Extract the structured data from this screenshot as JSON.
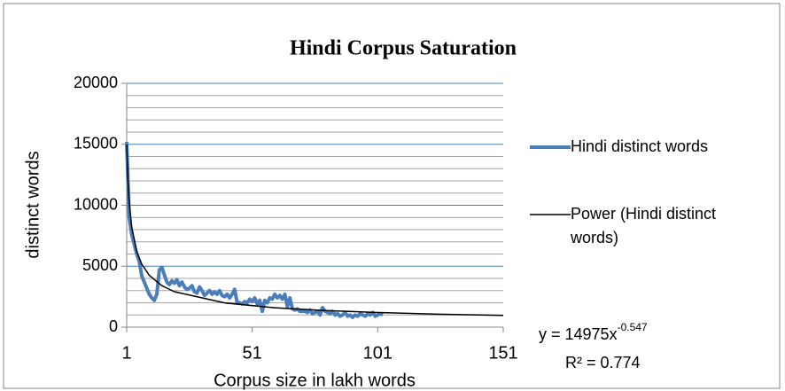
{
  "chart_data": {
    "type": "line",
    "title": "Hindi Corpus Saturation",
    "x_label": "Corpus size in lakh words",
    "y_label": "distinct words",
    "xlim": [
      1,
      151
    ],
    "xticks": [
      1,
      51,
      101,
      151
    ],
    "ylim": [
      0,
      20000
    ],
    "yticks": [
      0,
      5000,
      10000,
      15000,
      20000
    ],
    "minor_yticks": [
      1000,
      2000,
      3000,
      4000,
      6000,
      7000,
      8000,
      9000,
      11000,
      12000,
      13000,
      14000,
      16000,
      17000,
      18000,
      19000
    ],
    "grid": true,
    "legend": "right",
    "series": [
      {
        "name": "Hindi distinct words",
        "color": "#4a7ebb",
        "x": [
          1,
          2,
          3,
          4,
          5,
          6,
          7,
          8,
          9,
          10,
          11,
          12,
          13,
          14,
          15,
          16,
          17,
          18,
          19,
          20,
          21,
          22,
          23,
          24,
          25,
          26,
          27,
          28,
          29,
          30,
          31,
          32,
          33,
          34,
          35,
          36,
          37,
          38,
          39,
          40,
          41,
          42,
          43,
          44,
          45,
          46,
          47,
          48,
          49,
          50,
          51,
          52,
          53,
          54,
          55,
          56,
          57,
          58,
          59,
          60,
          61,
          62,
          63,
          64,
          65,
          66,
          67,
          68,
          69,
          70,
          71,
          72,
          73,
          74,
          75,
          76,
          77,
          78,
          79,
          80,
          81,
          82,
          83,
          84,
          85,
          86,
          87,
          88,
          89,
          90,
          91,
          92,
          93,
          94,
          95,
          96,
          97,
          98,
          99,
          100,
          101,
          102,
          103
        ],
        "values": [
          15200,
          9000,
          7600,
          6800,
          6000,
          5400,
          4200,
          3700,
          3200,
          2700,
          2400,
          2200,
          2700,
          4700,
          4900,
          4300,
          3700,
          3500,
          3800,
          3600,
          3900,
          3400,
          3700,
          3300,
          3100,
          3200,
          3400,
          2900,
          2800,
          3300,
          3000,
          2600,
          2800,
          3000,
          2700,
          2900,
          2700,
          3000,
          2600,
          2500,
          2700,
          2400,
          2700,
          3100,
          2000,
          2000,
          1900,
          2100,
          2000,
          2300,
          2100,
          2400,
          1900,
          2200,
          1300,
          2200,
          2000,
          2400,
          2300,
          2700,
          2400,
          2600,
          2300,
          2700,
          1700,
          2400,
          1500,
          1400,
          1500,
          1300,
          1300,
          1300,
          1200,
          1400,
          1100,
          1200,
          1300,
          1000,
          1600,
          1300,
          1200,
          1100,
          1300,
          1000,
          1100,
          900,
          1000,
          1200,
          900,
          1000,
          800,
          1000,
          900,
          1100,
          1000,
          900,
          1100,
          1000,
          1200,
          900,
          1000,
          1100,
          1000
        ]
      },
      {
        "name": "Power (Hindi distinct words)",
        "color": "#000000",
        "x": [
          1,
          1.5,
          2,
          3,
          5,
          7,
          10,
          15,
          20,
          40,
          60,
          80,
          100,
          125,
          151
        ],
        "values": [
          14975,
          11995,
          10244,
          8208,
          6210,
          5163,
          4250,
          3405,
          2909,
          1990,
          1595,
          1362,
          1206,
          1067,
          963
        ]
      }
    ],
    "equation": {
      "text": "y = 14975x",
      "exponent": "-0.547",
      "r_squared": "R² = 0.774"
    }
  }
}
